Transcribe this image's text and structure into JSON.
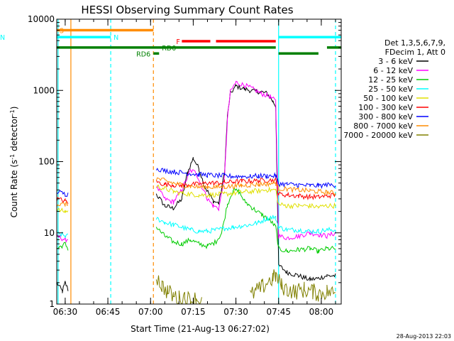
{
  "chart_data": {
    "type": "line",
    "title": "HESSI Observing Summary Count Rates",
    "xlabel": "Start Time (21-Aug-13 06:27:02)",
    "ylabel": "Count Rate (s-1 detector-1)",
    "ylabel_parts": {
      "main": "Count Rate (s",
      "sup1": "-1",
      "mid": " detector",
      "sup2": "-1",
      "end": ")"
    },
    "timestamp": "28-Aug-2013 22:03",
    "y_scale": "log",
    "ylim": [
      1,
      10000
    ],
    "xlim": [
      "06:27:02",
      "08:07:00"
    ],
    "x_ticks": [
      "06:30",
      "06:45",
      "07:00",
      "07:15",
      "07:30",
      "07:45",
      "08:00"
    ],
    "y_ticks": [
      "1",
      "10",
      "100",
      "1000",
      "10000"
    ],
    "legend": {
      "position": "right",
      "header": [
        "Det 1,3,5,6,7,9,",
        "FDecim 1, Att 0"
      ]
    },
    "series": [
      {
        "name": "3 - 6 keV",
        "color": "#000000",
        "points": [
          [
            "06:27:02",
            2
          ],
          [
            "06:29",
            1.5
          ],
          [
            "06:30",
            2
          ],
          [
            "06:31",
            1.6
          ],
          [
            "07:02",
            35
          ],
          [
            "07:05",
            24
          ],
          [
            "07:08",
            22
          ],
          [
            "07:11",
            30
          ],
          [
            "07:13",
            70
          ],
          [
            "07:15",
            112
          ],
          [
            "07:17",
            80
          ],
          [
            "07:19",
            45
          ],
          [
            "07:22",
            28
          ],
          [
            "07:24",
            26
          ],
          [
            "07:26",
            70
          ],
          [
            "07:27",
            420
          ],
          [
            "07:28",
            900
          ],
          [
            "07:30",
            1150
          ],
          [
            "07:33",
            1050
          ],
          [
            "07:36",
            980
          ],
          [
            "07:39",
            950
          ],
          [
            "07:41",
            900
          ],
          [
            "07:43",
            700
          ],
          [
            "07:44",
            600
          ],
          [
            "07:45",
            3.5
          ],
          [
            "07:48",
            2.8
          ],
          [
            "07:52",
            2.5
          ],
          [
            "07:56",
            2.2
          ],
          [
            "07:59",
            2.3
          ],
          [
            "08:02",
            2.5
          ],
          [
            "08:05",
            2.5
          ]
        ]
      },
      {
        "name": "6 - 12 keV",
        "color": "#ff00ff",
        "points": [
          [
            "06:27:02",
            9
          ],
          [
            "06:30",
            8
          ],
          [
            "06:31",
            8.2
          ],
          [
            "07:02",
            45
          ],
          [
            "07:05",
            30
          ],
          [
            "07:08",
            27
          ],
          [
            "07:11",
            40
          ],
          [
            "07:14",
            75
          ],
          [
            "07:16",
            70
          ],
          [
            "07:18",
            45
          ],
          [
            "07:20",
            30
          ],
          [
            "07:22",
            24
          ],
          [
            "07:24",
            22
          ],
          [
            "07:26",
            60
          ],
          [
            "07:27",
            380
          ],
          [
            "07:28",
            950
          ],
          [
            "07:30",
            1300
          ],
          [
            "07:33",
            1180
          ],
          [
            "07:36",
            1050
          ],
          [
            "07:39",
            900
          ],
          [
            "07:42",
            820
          ],
          [
            "07:44",
            700
          ],
          [
            "07:45",
            9
          ],
          [
            "07:48",
            8.5
          ],
          [
            "07:52",
            9
          ],
          [
            "07:56",
            10
          ],
          [
            "07:59",
            9.5
          ],
          [
            "08:02",
            9
          ],
          [
            "08:05",
            10
          ]
        ]
      },
      {
        "name": "12 - 25 keV",
        "color": "#00cc00",
        "points": [
          [
            "06:27:02",
            6
          ],
          [
            "06:30",
            7
          ],
          [
            "06:31",
            6
          ],
          [
            "07:02",
            12
          ],
          [
            "07:05",
            9
          ],
          [
            "07:08",
            7.5
          ],
          [
            "07:11",
            7
          ],
          [
            "07:14",
            8
          ],
          [
            "07:17",
            7
          ],
          [
            "07:20",
            6.5
          ],
          [
            "07:23",
            7.5
          ],
          [
            "07:25",
            10
          ],
          [
            "07:27",
            25
          ],
          [
            "07:29",
            40
          ],
          [
            "07:31",
            38
          ],
          [
            "07:33",
            28
          ],
          [
            "07:36",
            22
          ],
          [
            "07:39",
            18
          ],
          [
            "07:42",
            15
          ],
          [
            "07:44",
            12
          ],
          [
            "07:45",
            6
          ],
          [
            "07:48",
            5.5
          ],
          [
            "07:52",
            5.8
          ],
          [
            "07:56",
            6
          ],
          [
            "07:59",
            5.5
          ],
          [
            "08:02",
            6
          ],
          [
            "08:05",
            6
          ]
        ]
      },
      {
        "name": "25 - 50 keV",
        "color": "#00ffff",
        "points": [
          [
            "06:27:02",
            10
          ],
          [
            "06:30",
            9
          ],
          [
            "06:31",
            9
          ],
          [
            "07:02",
            16
          ],
          [
            "07:05",
            14
          ],
          [
            "07:08",
            13
          ],
          [
            "07:11",
            12
          ],
          [
            "07:14",
            11
          ],
          [
            "07:17",
            10.5
          ],
          [
            "07:20",
            10.5
          ],
          [
            "07:23",
            11
          ],
          [
            "07:26",
            11.5
          ],
          [
            "07:29",
            12
          ],
          [
            "07:32",
            12.5
          ],
          [
            "07:35",
            13
          ],
          [
            "07:38",
            14
          ],
          [
            "07:41",
            16
          ],
          [
            "07:43",
            17
          ],
          [
            "07:44",
            16
          ],
          [
            "07:45",
            12
          ],
          [
            "07:48",
            11
          ],
          [
            "07:52",
            11
          ],
          [
            "07:56",
            10.5
          ],
          [
            "07:59",
            10.5
          ],
          [
            "08:02",
            11
          ],
          [
            "08:05",
            11
          ]
        ]
      },
      {
        "name": "50 - 100 keV",
        "color": "#e0e000",
        "points": [
          [
            "06:27:02",
            21
          ],
          [
            "06:30",
            20
          ],
          [
            "06:31",
            20
          ],
          [
            "07:02",
            45
          ],
          [
            "07:05",
            42
          ],
          [
            "07:08",
            38
          ],
          [
            "07:11",
            36
          ],
          [
            "07:14",
            35
          ],
          [
            "07:17",
            34
          ],
          [
            "07:20",
            34
          ],
          [
            "07:23",
            34.5
          ],
          [
            "07:26",
            35
          ],
          [
            "07:29",
            36
          ],
          [
            "07:32",
            37
          ],
          [
            "07:35",
            38
          ],
          [
            "07:38",
            39
          ],
          [
            "07:41",
            40
          ],
          [
            "07:44",
            40
          ],
          [
            "07:45",
            25
          ],
          [
            "07:48",
            24
          ],
          [
            "07:52",
            24
          ],
          [
            "07:56",
            24
          ],
          [
            "07:59",
            23
          ],
          [
            "08:02",
            24
          ],
          [
            "08:05",
            24
          ]
        ]
      },
      {
        "name": "100 - 300 keV",
        "color": "#ff0000",
        "points": [
          [
            "06:27:02",
            30
          ],
          [
            "06:30",
            28
          ],
          [
            "06:31",
            27
          ],
          [
            "07:02",
            52
          ],
          [
            "07:05",
            48
          ],
          [
            "07:08",
            47
          ],
          [
            "07:11",
            46
          ],
          [
            "07:14",
            48
          ],
          [
            "07:17",
            48
          ],
          [
            "07:20",
            50
          ],
          [
            "07:23",
            50
          ],
          [
            "07:26",
            51
          ],
          [
            "07:29",
            52
          ],
          [
            "07:32",
            53
          ],
          [
            "07:35",
            53
          ],
          [
            "07:38",
            54
          ],
          [
            "07:41",
            55
          ],
          [
            "07:44",
            55
          ],
          [
            "07:45",
            35
          ],
          [
            "07:48",
            34
          ],
          [
            "07:52",
            33
          ],
          [
            "07:56",
            32
          ],
          [
            "07:59",
            32
          ],
          [
            "08:02",
            33
          ],
          [
            "08:05",
            34
          ]
        ]
      },
      {
        "name": "300 - 800 keV",
        "color": "#0000ff",
        "points": [
          [
            "06:27:02",
            38
          ],
          [
            "06:30",
            35
          ],
          [
            "06:31",
            35
          ],
          [
            "07:02",
            80
          ],
          [
            "07:05",
            75
          ],
          [
            "07:08",
            72
          ],
          [
            "07:11",
            70
          ],
          [
            "07:14",
            68
          ],
          [
            "07:17",
            66
          ],
          [
            "07:20",
            65
          ],
          [
            "07:23",
            64
          ],
          [
            "07:26",
            63
          ],
          [
            "07:29",
            62
          ],
          [
            "07:32",
            62
          ],
          [
            "07:35",
            62
          ],
          [
            "07:38",
            63
          ],
          [
            "07:41",
            63
          ],
          [
            "07:44",
            63
          ],
          [
            "07:45",
            49
          ],
          [
            "07:48",
            48
          ],
          [
            "07:52",
            47
          ],
          [
            "07:56",
            46
          ],
          [
            "07:59",
            46
          ],
          [
            "08:02",
            47
          ],
          [
            "08:05",
            47
          ]
        ]
      },
      {
        "name": "800 - 7000 keV",
        "color": "#ff8c00",
        "points": [
          [
            "06:27:02",
            25
          ],
          [
            "06:30",
            25
          ],
          [
            "06:31",
            25
          ],
          [
            "07:02",
            58
          ],
          [
            "07:05",
            54
          ],
          [
            "07:08",
            50
          ],
          [
            "07:11",
            47
          ],
          [
            "07:14",
            45
          ],
          [
            "07:17",
            44
          ],
          [
            "07:20",
            44
          ],
          [
            "07:23",
            44
          ],
          [
            "07:26",
            44.5
          ],
          [
            "07:29",
            45
          ],
          [
            "07:32",
            46
          ],
          [
            "07:35",
            47
          ],
          [
            "07:38",
            48
          ],
          [
            "07:41",
            49
          ],
          [
            "07:44",
            50
          ],
          [
            "07:45",
            42
          ],
          [
            "07:48",
            41
          ],
          [
            "07:52",
            40
          ],
          [
            "07:56",
            39
          ],
          [
            "07:59",
            38
          ],
          [
            "08:02",
            37
          ],
          [
            "08:05",
            36
          ]
        ]
      },
      {
        "name": "7000 - 20000 keV",
        "color": "#808000",
        "points": [
          [
            "07:02",
            2.5
          ],
          [
            "07:04",
            1.8
          ],
          [
            "07:06",
            1.5
          ],
          [
            "07:08",
            1.3
          ],
          [
            "07:10",
            1.2
          ],
          [
            "07:12",
            1.3
          ],
          [
            "07:14",
            1.1
          ],
          [
            "07:16",
            1.2
          ],
          [
            "07:18",
            1.1
          ],
          [
            "07:35",
            1.3
          ],
          [
            "07:37",
            1.5
          ],
          [
            "07:39",
            1.7
          ],
          [
            "07:41",
            2
          ],
          [
            "07:43",
            2.3
          ],
          [
            "07:44",
            2.5
          ],
          [
            "07:46",
            1.8
          ],
          [
            "07:48",
            1.6
          ],
          [
            "07:51",
            1.5
          ],
          [
            "07:54",
            1.6
          ],
          [
            "07:57",
            1.5
          ],
          [
            "07:59",
            1.4
          ],
          [
            "08:02",
            1.5
          ],
          [
            "08:05",
            1.4
          ]
        ]
      }
    ],
    "flag_bars": [
      {
        "label": "S",
        "color": "#ff8c00",
        "y": 7000,
        "start": "06:27:02",
        "end": "07:01",
        "label_at": "06:28"
      },
      {
        "label": "N",
        "color": "#00ffff",
        "y": 5600,
        "start": "06:27:02",
        "end": "06:46",
        "label_at": "06:47"
      },
      {
        "label": "N",
        "color": "#00ffff",
        "y": 5600,
        "start": "07:45",
        "end": "08:07",
        "label_at": ""
      },
      {
        "label": "RD0",
        "color": "#008000",
        "y": 4000,
        "start": "06:27:02",
        "end": "07:44",
        "label_at": "07:04"
      },
      {
        "label": "",
        "color": "#008000",
        "y": 4000,
        "start": "08:02",
        "end": "08:07",
        "label_at": ""
      },
      {
        "label": "RD6",
        "color": "#008000",
        "y": 3300,
        "start": "07:01",
        "end": "07:03",
        "label_at": "06:55"
      },
      {
        "label": "",
        "color": "#008000",
        "y": 3300,
        "start": "07:45",
        "end": "07:59",
        "label_at": ""
      },
      {
        "label": "F",
        "color": "#ff0000",
        "y": 4900,
        "start": "07:11",
        "end": "07:21",
        "label_at": "07:09"
      },
      {
        "label": "",
        "color": "#ff0000",
        "y": 4900,
        "start": "07:23",
        "end": "07:44",
        "label_at": ""
      }
    ],
    "vertical_lines": [
      {
        "t": "06:32",
        "color": "#ff8c00",
        "style": "solid"
      },
      {
        "t": "06:46",
        "color": "#00ffff",
        "style": "dashed"
      },
      {
        "t": "07:01",
        "color": "#ff8c00",
        "style": "dashed"
      },
      {
        "t": "07:45",
        "color": "#00ffff",
        "style": "solid"
      },
      {
        "t": "08:05",
        "color": "#00ffff",
        "style": "dashed"
      },
      {
        "t": "06:27:30",
        "color": "#00ffff",
        "style": "solid"
      }
    ]
  }
}
